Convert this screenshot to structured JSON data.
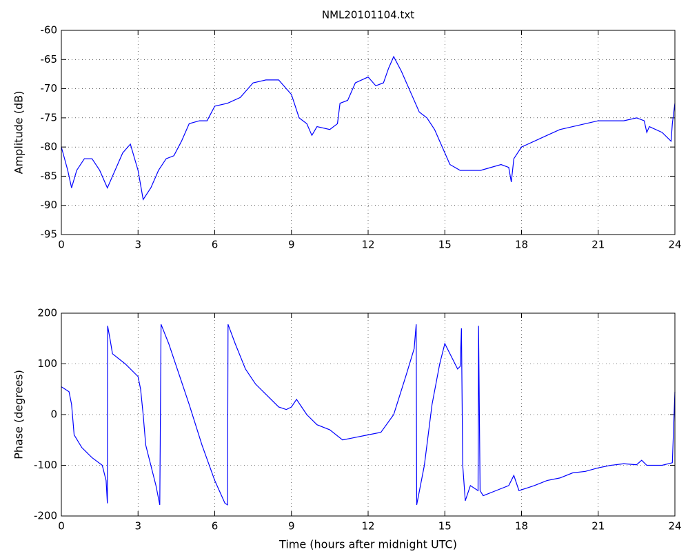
{
  "chart_data": [
    {
      "type": "line",
      "title": "NML20101104.txt",
      "y_label": "Amplitude (dB)",
      "color": "#0000ff",
      "grid": true,
      "xlim": [
        0,
        24
      ],
      "xticks": [
        0,
        3,
        6,
        9,
        12,
        15,
        18,
        21,
        24
      ],
      "ylim": [
        -95,
        -60
      ],
      "yticks": [
        -95,
        -90,
        -85,
        -80,
        -75,
        -70,
        -65,
        -60
      ],
      "x": [
        0,
        0.25,
        0.4,
        0.6,
        0.9,
        1.2,
        1.5,
        1.8,
        2.1,
        2.4,
        2.7,
        3.0,
        3.2,
        3.5,
        3.8,
        4.1,
        4.4,
        4.7,
        5.0,
        5.4,
        5.7,
        6.0,
        6.5,
        7.0,
        7.5,
        8.0,
        8.5,
        9.0,
        9.3,
        9.6,
        9.8,
        10.0,
        10.5,
        10.8,
        10.9,
        11.2,
        11.5,
        12.0,
        12.3,
        12.6,
        12.8,
        13.0,
        13.3,
        13.6,
        14.0,
        14.3,
        14.6,
        14.9,
        15.2,
        15.6,
        16.0,
        16.4,
        16.8,
        17.2,
        17.5,
        17.6,
        17.7,
        18.0,
        18.5,
        19.0,
        19.5,
        20.0,
        20.5,
        21.0,
        21.5,
        22.0,
        22.5,
        22.8,
        22.9,
        23.0,
        23.5,
        23.85,
        23.9,
        24.0
      ],
      "values": [
        -80,
        -84,
        -87,
        -84,
        -82,
        -82,
        -84,
        -87,
        -84,
        -81,
        -79.5,
        -84,
        -89,
        -87,
        -84,
        -82,
        -81.5,
        -79,
        -76,
        -75.5,
        -75.5,
        -73,
        -72.5,
        -71.5,
        -69,
        -68.5,
        -68.5,
        -71,
        -75,
        -76,
        -78,
        -76.5,
        -77,
        -76,
        -72.5,
        -72,
        -69,
        -68,
        -69.5,
        -69,
        -66.5,
        -64.5,
        -67,
        -70,
        -74,
        -75,
        -77,
        -80,
        -83,
        -84,
        -84,
        -84,
        -83.5,
        -83,
        -83.5,
        -86,
        -82,
        -80,
        -79,
        -78,
        -77,
        -76.5,
        -76,
        -75.5,
        -75.5,
        -75.5,
        -75,
        -75.5,
        -77.5,
        -76.5,
        -77.5,
        -79,
        -76,
        -72.5
      ]
    },
    {
      "type": "line",
      "x_label": "Time (hours after midnight UTC)",
      "y_label": "Phase (degrees)",
      "color": "#0000ff",
      "grid": true,
      "xlim": [
        0,
        24
      ],
      "xticks": [
        0,
        3,
        6,
        9,
        12,
        15,
        18,
        21,
        24
      ],
      "ylim": [
        -200,
        200
      ],
      "yticks": [
        -200,
        -100,
        0,
        100,
        200
      ],
      "x": [
        0,
        0.3,
        0.4,
        0.5,
        0.8,
        1.2,
        1.6,
        1.75,
        1.8,
        1.81,
        1.9,
        2.0,
        2.5,
        3.0,
        3.1,
        3.2,
        3.3,
        3.5,
        3.7,
        3.85,
        3.9,
        4.2,
        4.6,
        5.0,
        5.5,
        6.0,
        6.4,
        6.5,
        6.52,
        6.8,
        7.2,
        7.6,
        8.0,
        8.5,
        8.8,
        9.0,
        9.2,
        9.4,
        9.6,
        10.0,
        10.5,
        11.0,
        11.5,
        12.0,
        12.5,
        13.0,
        13.5,
        13.8,
        13.88,
        13.9,
        14.2,
        14.5,
        14.8,
        15.0,
        15.3,
        15.5,
        15.6,
        15.65,
        15.7,
        15.8,
        16.0,
        16.3,
        16.32,
        16.38,
        16.5,
        17.0,
        17.5,
        17.7,
        17.9,
        18.5,
        19.0,
        19.5,
        20.0,
        20.5,
        21.0,
        21.5,
        22.0,
        22.5,
        22.7,
        22.9,
        23.5,
        23.9,
        24.0
      ],
      "values": [
        55,
        45,
        20,
        -40,
        -65,
        -85,
        -100,
        -130,
        -175,
        175,
        150,
        120,
        100,
        75,
        50,
        0,
        -60,
        -100,
        -140,
        -178,
        178,
        140,
        80,
        20,
        -60,
        -130,
        -175,
        -178,
        178,
        140,
        90,
        60,
        40,
        15,
        10,
        15,
        30,
        15,
        0,
        -20,
        -30,
        -50,
        -45,
        -40,
        -35,
        0,
        80,
        130,
        178,
        -178,
        -100,
        20,
        100,
        140,
        110,
        90,
        95,
        170,
        -100,
        -170,
        -140,
        -150,
        175,
        -150,
        -160,
        -150,
        -140,
        -120,
        -150,
        -140,
        -130,
        -125,
        -115,
        -112,
        -105,
        -100,
        -97,
        -99,
        -90,
        -100,
        -100,
        -95,
        45
      ]
    }
  ]
}
